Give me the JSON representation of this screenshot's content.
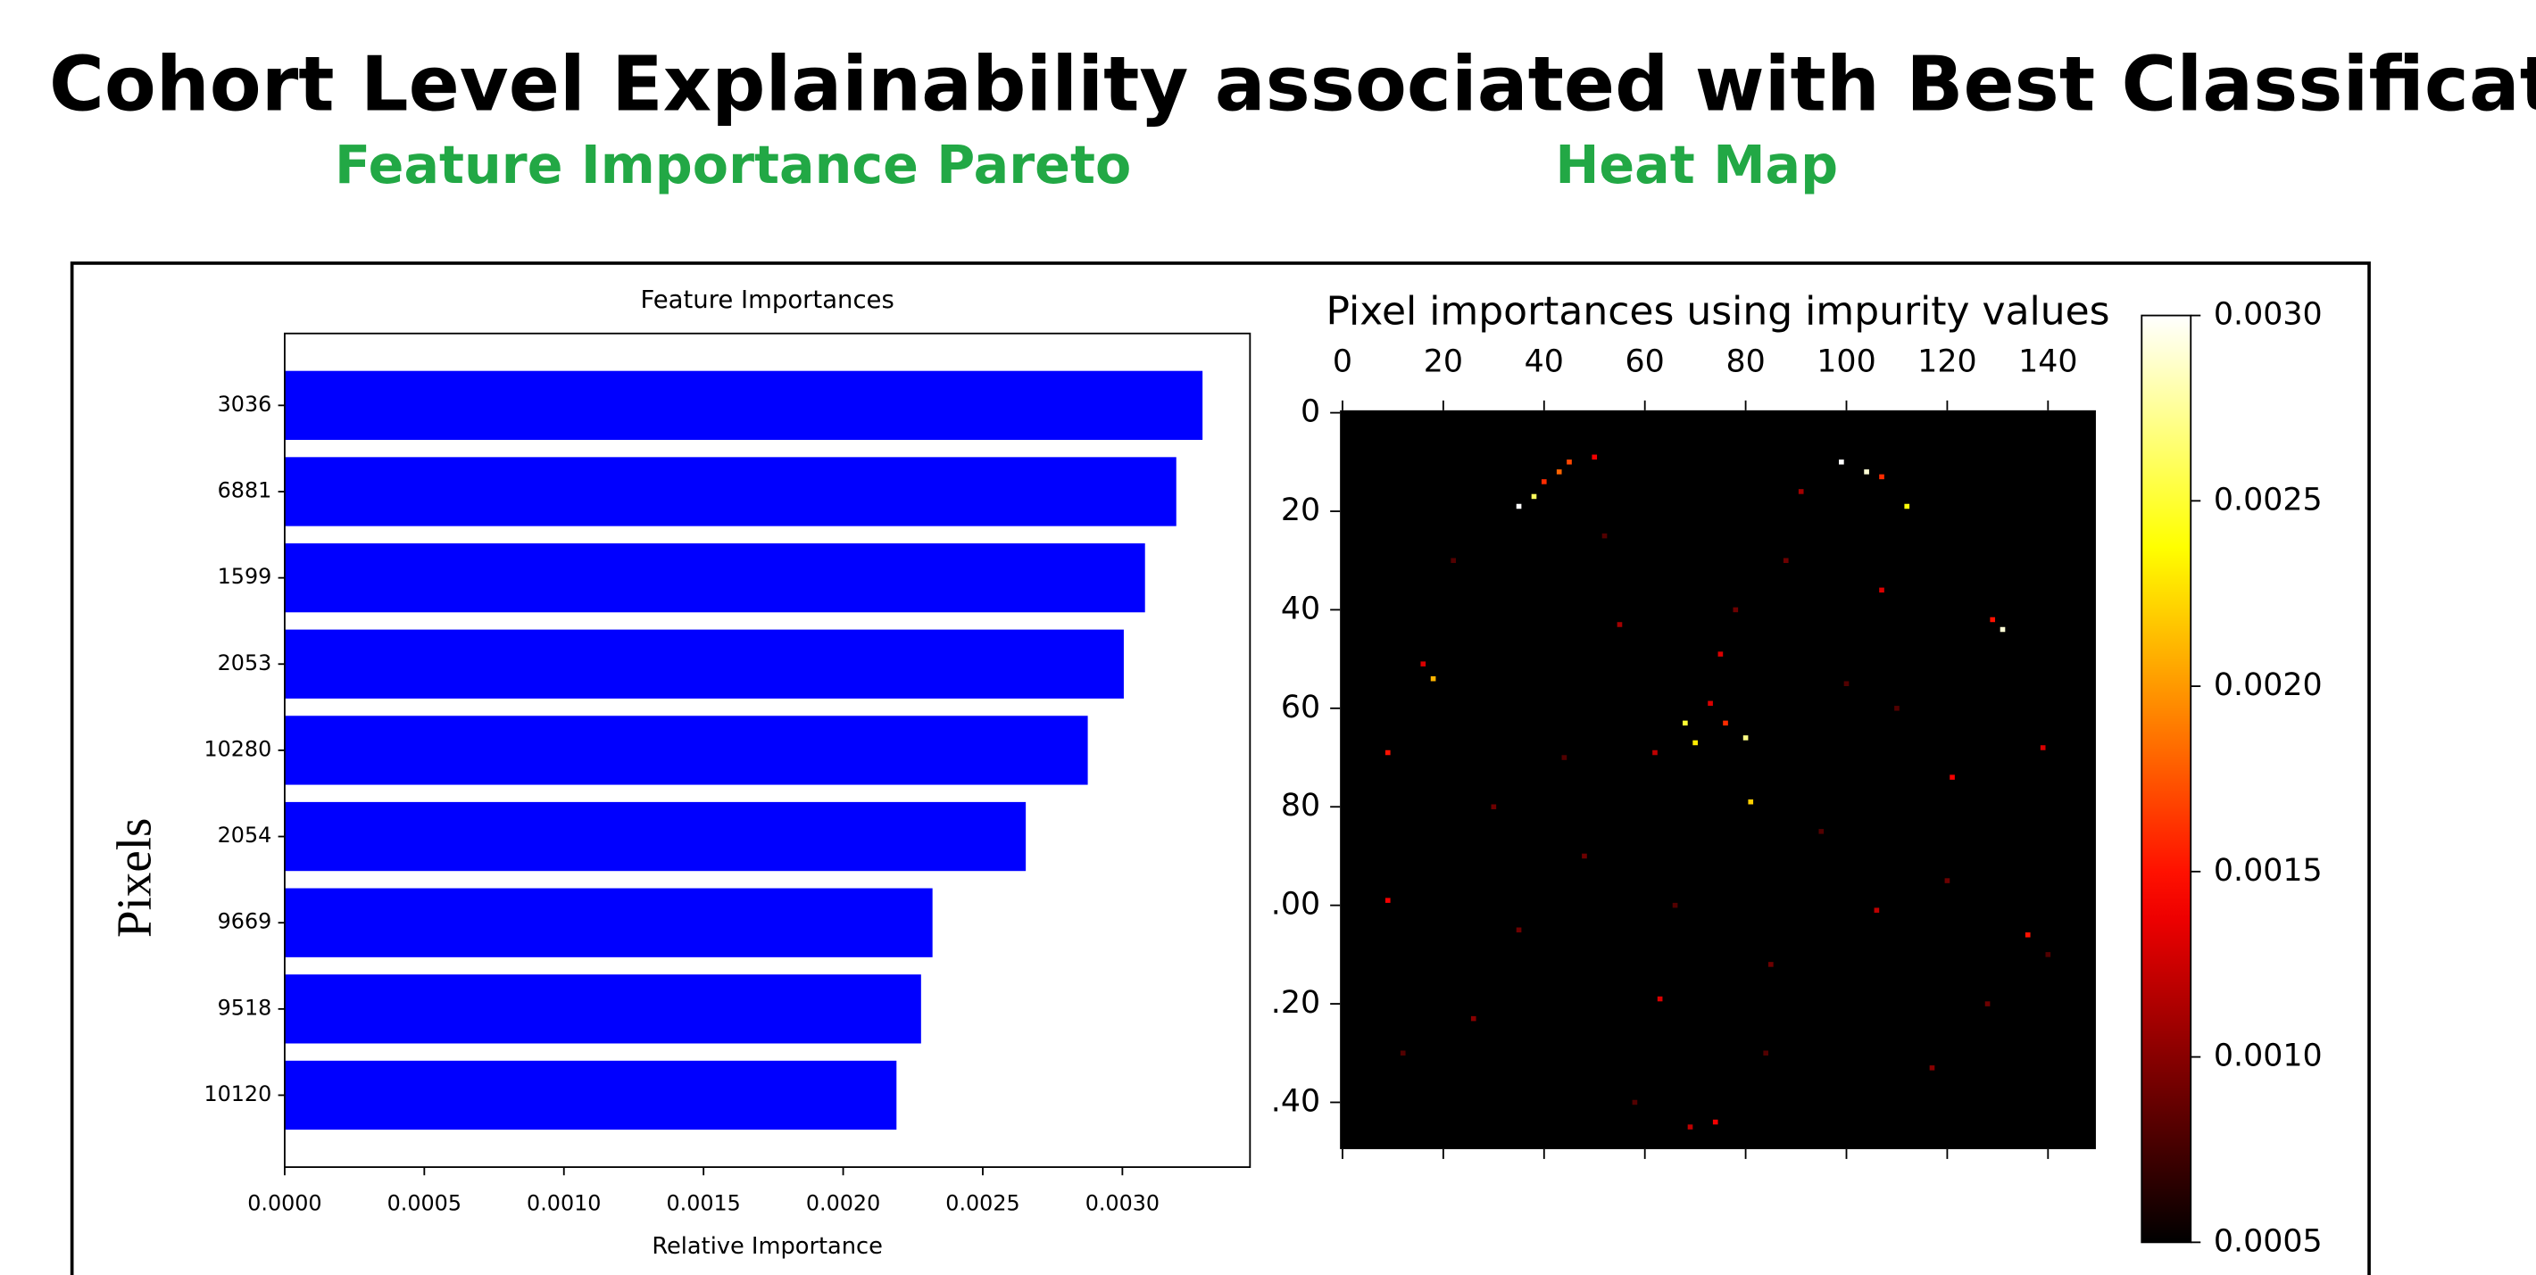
{
  "header": {
    "title": "Cohort Level Explainability associated with Best Classification Model",
    "subtitles": [
      "Feature Importance Pareto",
      "Heat Map"
    ]
  },
  "chart_data": [
    {
      "type": "barh",
      "title": "Feature Importances",
      "x_label": "Relative Importance",
      "y_label": "Pixels",
      "color": "#0000ff",
      "categories": [
        "3036",
        "6881",
        "1599",
        "2053",
        "10280",
        "2054",
        "9669",
        "9518",
        "10120"
      ],
      "values": [
        0.003287,
        0.003193,
        0.003081,
        0.003005,
        0.002876,
        0.002654,
        0.00232,
        0.002279,
        0.002191
      ],
      "xlim": [
        0,
        0.003457
      ],
      "xticks": [
        {
          "value": 0,
          "label": "0.0000"
        },
        {
          "value": 0.0005,
          "label": "0.0005"
        },
        {
          "value": 0.001,
          "label": "0.0010"
        },
        {
          "value": 0.0015,
          "label": "0.0015"
        },
        {
          "value": 0.002,
          "label": "0.0020"
        },
        {
          "value": 0.0025,
          "label": "0.0025"
        },
        {
          "value": 0.003,
          "label": "0.0030"
        }
      ]
    },
    {
      "type": "heatmap",
      "title": "Pixel importances using impurity values",
      "colormap": "hot",
      "xlim": [
        -0.5,
        149.5
      ],
      "ylim": [
        149.5,
        -0.5
      ],
      "xticks": [
        0,
        20,
        40,
        60,
        80,
        100,
        120,
        140
      ],
      "yticks": [
        0,
        20,
        40,
        60,
        80,
        {
          "value": 100,
          "label": ".00"
        },
        {
          "value": 120,
          "label": ".20"
        },
        {
          "value": 140,
          "label": ".40"
        }
      ],
      "zlim": [
        0.0005,
        0.003
      ],
      "zticks": [
        {
          "value": 0.0005,
          "label": "0.0005"
        },
        {
          "value": 0.001,
          "label": "0.0010"
        },
        {
          "value": 0.0015,
          "label": "0.0015"
        },
        {
          "value": 0.002,
          "label": "0.0020"
        },
        {
          "value": 0.0025,
          "label": "0.0025"
        },
        {
          "value": 0.003,
          "label": "0.0030"
        }
      ],
      "x": [
        35,
        38,
        40,
        43,
        45,
        50,
        99,
        104,
        107,
        112,
        131,
        129,
        68,
        70,
        80,
        76,
        73,
        81,
        18,
        16,
        9,
        75,
        136,
        9,
        63,
        74,
        69,
        107,
        121,
        139,
        106,
        55,
        91,
        62,
        26,
        117,
        30,
        48,
        88,
        120,
        140,
        12,
        58,
        95,
        85,
        44,
        66,
        100,
        128,
        22,
        78,
        110,
        52,
        35,
        84
      ],
      "y": [
        19,
        17,
        14,
        12,
        10,
        9,
        10,
        12,
        13,
        19,
        44,
        42,
        63,
        67,
        66,
        63,
        59,
        79,
        54,
        51,
        69,
        49,
        106,
        99,
        119,
        144,
        145,
        36,
        74,
        68,
        101,
        43,
        16,
        69,
        123,
        133,
        80,
        90,
        30,
        95,
        110,
        130,
        140,
        85,
        112,
        70,
        100,
        55,
        120,
        30,
        40,
        60,
        25,
        105,
        130
      ],
      "values": [
        0.003,
        0.0026,
        0.0016,
        0.0018,
        0.0017,
        0.0014,
        0.003,
        0.0029,
        0.0016,
        0.0024,
        0.0029,
        0.0015,
        0.0025,
        0.0023,
        0.0027,
        0.0016,
        0.0013,
        0.0022,
        0.0021,
        0.0013,
        0.0015,
        0.0013,
        0.0015,
        0.0014,
        0.0013,
        0.0014,
        0.0012,
        0.0013,
        0.0014,
        0.0013,
        0.0012,
        0.0011,
        0.0011,
        0.0012,
        0.001,
        0.001,
        0.0009,
        0.0009,
        0.0009,
        0.0009,
        0.0008,
        0.0008,
        0.0008,
        0.0008,
        0.0009,
        0.0008,
        0.0008,
        0.0008,
        0.0009,
        0.0008,
        0.0009,
        0.0008,
        0.0008,
        0.0009,
        0.0008
      ]
    }
  ]
}
